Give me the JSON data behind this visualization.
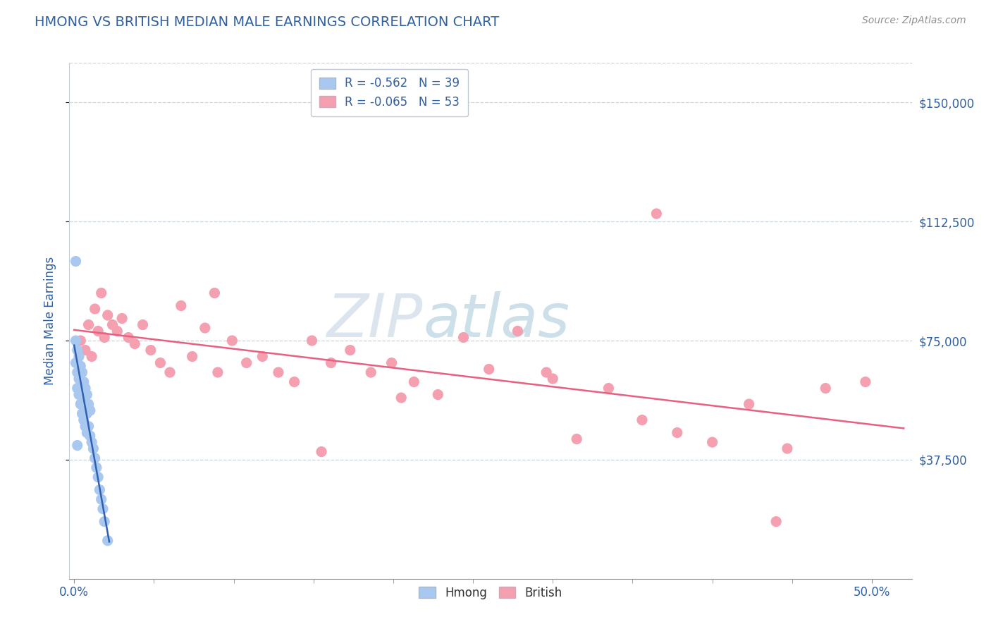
{
  "title": "HMONG VS BRITISH MEDIAN MALE EARNINGS CORRELATION CHART",
  "source": "Source: ZipAtlas.com",
  "ylabel": "Median Male Earnings",
  "x_tick_positions": [
    0.0,
    0.5
  ],
  "x_tick_labels": [
    "0.0%",
    "50.0%"
  ],
  "y_tick_labels": [
    "$37,500",
    "$75,000",
    "$112,500",
    "$150,000"
  ],
  "y_tick_values": [
    37500,
    75000,
    112500,
    150000
  ],
  "y_min": 0,
  "y_max": 162500,
  "x_min": -0.003,
  "x_max": 0.525,
  "hmong_color": "#a8c8f0",
  "british_color": "#f4a0b0",
  "hmong_line_color": "#3060b0",
  "british_line_color": "#e86080",
  "r_hmong": -0.562,
  "n_hmong": 39,
  "r_british": -0.065,
  "n_british": 53,
  "watermark_zip": "ZIP",
  "watermark_atlas": "atlas",
  "title_color": "#3060a0",
  "source_color": "#909090",
  "axis_label_color": "#3060a0",
  "tick_label_color": "#3060a0",
  "grid_color": "#c8d4e0",
  "hmong_scatter_x": [
    0.001,
    0.001,
    0.002,
    0.002,
    0.002,
    0.003,
    0.003,
    0.003,
    0.004,
    0.004,
    0.004,
    0.005,
    0.005,
    0.005,
    0.006,
    0.006,
    0.006,
    0.007,
    0.007,
    0.007,
    0.008,
    0.008,
    0.008,
    0.009,
    0.009,
    0.01,
    0.01,
    0.011,
    0.012,
    0.013,
    0.014,
    0.015,
    0.016,
    0.017,
    0.018,
    0.019,
    0.021,
    0.001,
    0.002
  ],
  "hmong_scatter_y": [
    100000,
    68000,
    72000,
    65000,
    60000,
    70000,
    63000,
    58000,
    67000,
    60000,
    55000,
    65000,
    58000,
    52000,
    62000,
    56000,
    50000,
    60000,
    55000,
    48000,
    58000,
    52000,
    46000,
    55000,
    48000,
    53000,
    45000,
    43000,
    41000,
    38000,
    35000,
    32000,
    28000,
    25000,
    22000,
    18000,
    12000,
    75000,
    42000
  ],
  "british_scatter_x": [
    0.004,
    0.007,
    0.009,
    0.011,
    0.013,
    0.015,
    0.017,
    0.019,
    0.021,
    0.024,
    0.027,
    0.03,
    0.034,
    0.038,
    0.043,
    0.048,
    0.054,
    0.06,
    0.067,
    0.074,
    0.082,
    0.09,
    0.099,
    0.108,
    0.118,
    0.128,
    0.138,
    0.149,
    0.161,
    0.173,
    0.186,
    0.199,
    0.213,
    0.228,
    0.244,
    0.26,
    0.278,
    0.296,
    0.315,
    0.335,
    0.356,
    0.378,
    0.4,
    0.423,
    0.447,
    0.471,
    0.496,
    0.365,
    0.088,
    0.155,
    0.3,
    0.205,
    0.44
  ],
  "british_scatter_y": [
    75000,
    72000,
    80000,
    70000,
    85000,
    78000,
    90000,
    76000,
    83000,
    80000,
    78000,
    82000,
    76000,
    74000,
    80000,
    72000,
    68000,
    65000,
    86000,
    70000,
    79000,
    65000,
    75000,
    68000,
    70000,
    65000,
    62000,
    75000,
    68000,
    72000,
    65000,
    68000,
    62000,
    58000,
    76000,
    66000,
    78000,
    65000,
    44000,
    60000,
    50000,
    46000,
    43000,
    55000,
    41000,
    60000,
    62000,
    115000,
    90000,
    40000,
    63000,
    57000,
    18000
  ]
}
